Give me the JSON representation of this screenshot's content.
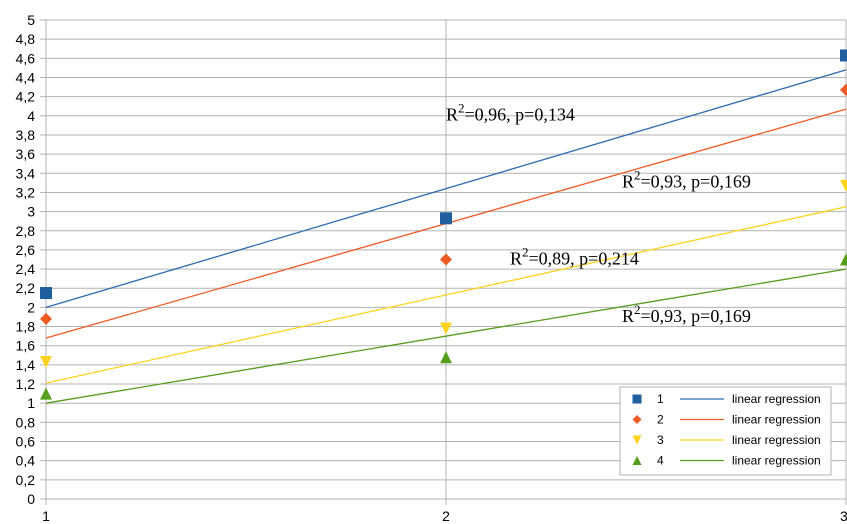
{
  "chart_data": {
    "type": "scatter",
    "xlim": [
      1,
      3
    ],
    "ylim": [
      0,
      5
    ],
    "x_ticks": [
      "1",
      "2",
      "3"
    ],
    "y_ticks": [
      "0",
      "0,2",
      "0,4",
      "0,6",
      "0,8",
      "1",
      "1,2",
      "1,4",
      "1,6",
      "1,8",
      "2",
      "2,2",
      "2,4",
      "2,6",
      "2,8",
      "3",
      "3,2",
      "3,4",
      "3,6",
      "3,8",
      "4",
      "4,2",
      "4,4",
      "4,6",
      "4,8",
      "5"
    ],
    "grid": true,
    "legend_position": "bottom-right",
    "series": [
      {
        "name": "1",
        "marker": "square",
        "color": "#1f5f9e",
        "x": [
          1,
          2,
          3
        ],
        "y": [
          2.15,
          2.93,
          4.63
        ],
        "regression": {
          "name": "linear regression",
          "color": "#2e6bb0",
          "y_at_x1": 2.0,
          "y_at_x3": 4.48
        }
      },
      {
        "name": "2",
        "marker": "diamond",
        "color": "#ee5a24",
        "x": [
          1,
          2,
          3
        ],
        "y": [
          1.88,
          2.5,
          4.27
        ],
        "regression": {
          "name": "linear regression",
          "color": "#ee5a24",
          "y_at_x1": 1.68,
          "y_at_x3": 4.07
        }
      },
      {
        "name": "3",
        "marker": "triangle-down",
        "color": "#ffd320",
        "x": [
          1,
          2,
          3
        ],
        "y": [
          1.43,
          1.78,
          3.27
        ],
        "regression": {
          "name": "linear regression",
          "color": "#ffd320",
          "y_at_x1": 1.21,
          "y_at_x3": 3.05
        }
      },
      {
        "name": "4",
        "marker": "triangle-up",
        "color": "#579d1c",
        "x": [
          1,
          2,
          3
        ],
        "y": [
          1.1,
          1.48,
          2.5
        ],
        "regression": {
          "name": "linear regression",
          "color": "#579d1c",
          "y_at_x1": 1.0,
          "y_at_x3": 2.4
        }
      }
    ],
    "annotations": [
      {
        "base": "R",
        "sup": "2",
        "text": "=0,96,  p=0,134",
        "x": 2.0,
        "y": 3.95
      },
      {
        "base": "R",
        "sup": "2",
        "text": "=0,93,  p=0,169",
        "x": 2.44,
        "y": 3.25
      },
      {
        "base": "R",
        "sup": "2",
        "text": "=0,89,  p=0,214",
        "x": 2.16,
        "y": 2.45
      },
      {
        "base": "R",
        "sup": "2",
        "text": "=0,93,  p=0,169",
        "x": 2.44,
        "y": 1.85
      }
    ]
  }
}
